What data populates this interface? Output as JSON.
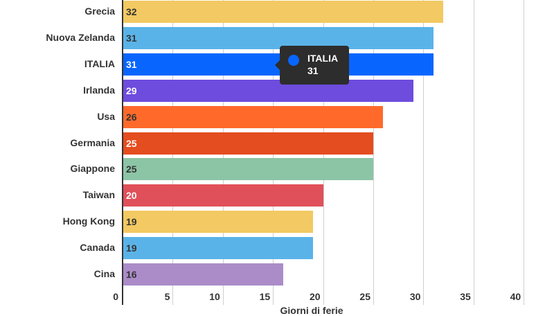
{
  "chart_data": {
    "type": "bar",
    "orientation": "horizontal",
    "title": "",
    "xlabel": "Giorni di ferie",
    "ylabel": "",
    "xlim": [
      0,
      40
    ],
    "xticks": [
      0,
      5,
      10,
      15,
      20,
      25,
      30,
      35,
      40
    ],
    "grid": true,
    "categories": [
      "Grecia",
      "Nuova Zelanda",
      "ITALIA",
      "Irlanda",
      "Usa",
      "Germania",
      "Giappone",
      "Taiwan",
      "Hong Kong",
      "Canada",
      "Cina"
    ],
    "values": [
      32,
      31,
      31,
      29,
      26,
      25,
      25,
      20,
      19,
      19,
      16
    ],
    "colors": [
      "#f2c962",
      "#5ab3e8",
      "#0866ff",
      "#6e4cdd",
      "#ff6a2b",
      "#e44d1f",
      "#8cc5a6",
      "#e0505a",
      "#f2c962",
      "#5ab3e8",
      "#ab8cc8"
    ],
    "label_colors": [
      "#333333",
      "#333333",
      "#ffffff",
      "#ffffff",
      "#333333",
      "#ffffff",
      "#333333",
      "#ffffff",
      "#333333",
      "#333333",
      "#333333"
    ],
    "tooltip": {
      "category": "ITALIA",
      "value": 31,
      "color": "#0866ff"
    }
  }
}
